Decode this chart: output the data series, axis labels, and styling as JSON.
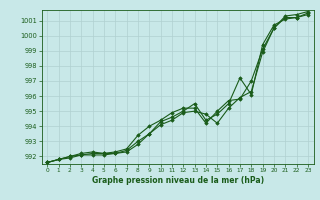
{
  "xlabel": "Graphe pression niveau de la mer (hPa)",
  "background_color": "#c8e8e8",
  "grid_color": "#b0d0d0",
  "line_color": "#1a5c1a",
  "xlim": [
    -0.5,
    23.5
  ],
  "ylim": [
    991.5,
    1001.7
  ],
  "yticks": [
    992,
    993,
    994,
    995,
    996,
    997,
    998,
    999,
    1000,
    1001
  ],
  "xticks": [
    0,
    1,
    2,
    3,
    4,
    5,
    6,
    7,
    8,
    9,
    10,
    11,
    12,
    13,
    14,
    15,
    16,
    17,
    18,
    19,
    20,
    21,
    22,
    23
  ],
  "series": [
    {
      "x": [
        0,
        1,
        2,
        3,
        4,
        5,
        6,
        7,
        8,
        9,
        10,
        11,
        12,
        13,
        14,
        15,
        16,
        17,
        18,
        19,
        20,
        21,
        22,
        23
      ],
      "y": [
        991.6,
        991.8,
        991.9,
        992.1,
        992.1,
        992.1,
        992.2,
        992.3,
        992.8,
        993.5,
        994.1,
        994.4,
        994.9,
        995.0,
        994.8,
        994.2,
        995.2,
        995.9,
        996.3,
        998.9,
        1000.5,
        1001.2,
        1001.2,
        1001.4
      ],
      "marker": "D",
      "markersize": 1.8,
      "linewidth": 0.8
    },
    {
      "x": [
        0,
        1,
        2,
        3,
        4,
        5,
        6,
        7,
        8,
        9,
        10,
        11,
        12,
        13,
        14,
        15,
        16,
        17,
        18,
        19,
        20,
        21,
        22,
        23
      ],
      "y": [
        991.6,
        991.8,
        992.0,
        992.2,
        992.3,
        992.2,
        992.2,
        992.4,
        993.0,
        993.5,
        994.3,
        994.6,
        995.0,
        995.5,
        994.4,
        994.8,
        995.5,
        997.2,
        996.1,
        999.4,
        1000.7,
        1001.1,
        1001.2,
        1001.5
      ],
      "marker": "D",
      "markersize": 1.8,
      "linewidth": 0.8
    },
    {
      "x": [
        0,
        1,
        2,
        3,
        4,
        5,
        6,
        7,
        8,
        9,
        10,
        11,
        12,
        13,
        14,
        15,
        16,
        17,
        18,
        19,
        20,
        21,
        22,
        23
      ],
      "y": [
        991.6,
        991.8,
        992.0,
        992.1,
        992.2,
        992.2,
        992.3,
        992.5,
        993.4,
        994.0,
        994.4,
        994.9,
        995.2,
        995.2,
        994.2,
        995.0,
        995.7,
        995.8,
        997.0,
        999.1,
        1000.5,
        1001.3,
        1001.4,
        1001.6
      ],
      "marker": "D",
      "markersize": 1.8,
      "linewidth": 0.8
    }
  ]
}
